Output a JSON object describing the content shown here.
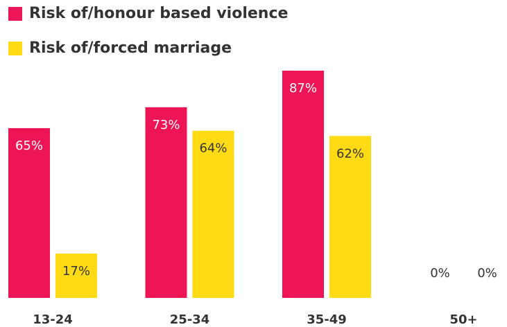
{
  "chart_data": {
    "type": "bar",
    "categories": [
      "13-24",
      "25-34",
      "35-49",
      "50+"
    ],
    "series": [
      {
        "name": "Risk of/honour based violence",
        "color": "#ee1556",
        "values": [
          65,
          73,
          87,
          0
        ],
        "value_labels": [
          "65%",
          "73%",
          "87%",
          "0%"
        ]
      },
      {
        "name": "Risk of/forced marriage",
        "color": "#fedb15",
        "values": [
          17,
          64,
          62,
          0
        ],
        "value_labels": [
          "17%",
          "64%",
          "62%",
          "0%"
        ]
      }
    ]
  }
}
